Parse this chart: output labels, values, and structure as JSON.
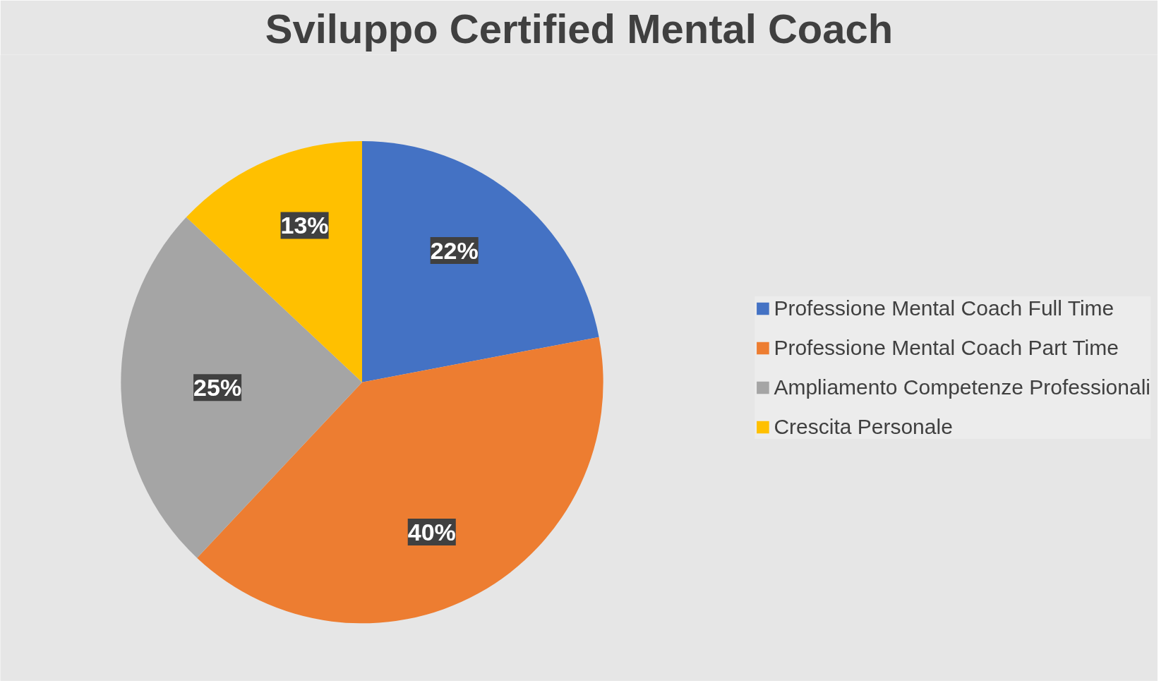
{
  "chart_data": {
    "type": "pie",
    "title": "Sviluppo Certified Mental Coach",
    "categories": [
      "Professione Mental Coach Full Time",
      "Professione Mental Coach Part Time",
      "Ampliamento Competenze Professionali",
      "Crescita Personale"
    ],
    "values": [
      22,
      40,
      25,
      13
    ],
    "colors": [
      "#4472c4",
      "#ed7d31",
      "#a5a5a5",
      "#ffc000"
    ],
    "value_labels": [
      "22%",
      "40%",
      "25%",
      "13%"
    ],
    "legend": "right"
  }
}
